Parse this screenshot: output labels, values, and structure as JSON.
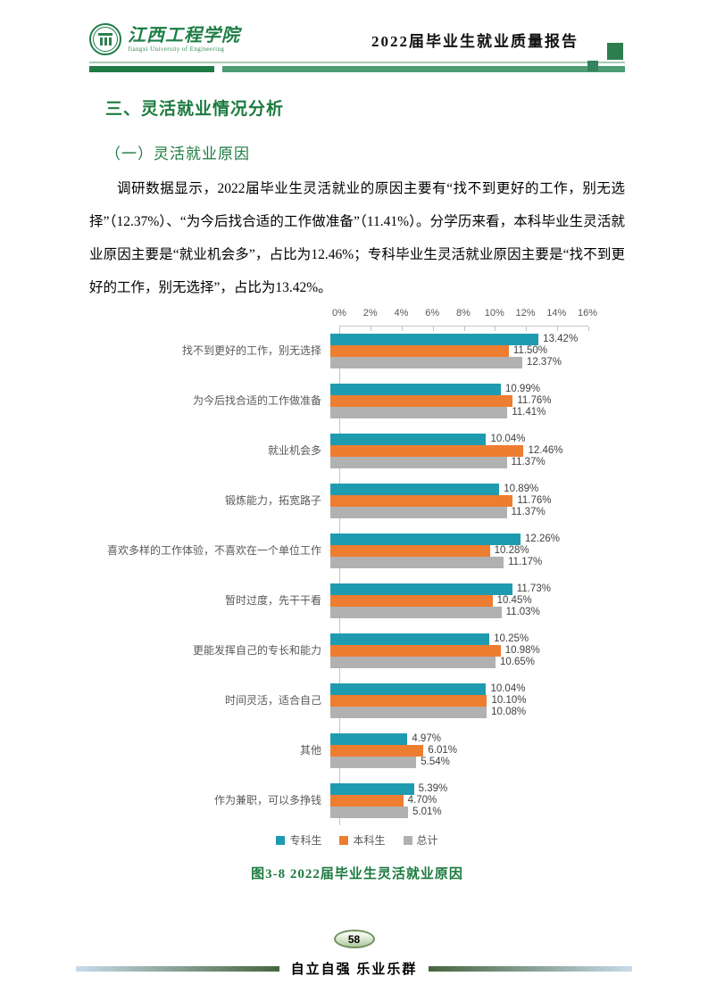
{
  "header": {
    "logo_name_cn": "江西工程学院",
    "logo_name_en": "Jiangxi University of Engineering",
    "report_title": "2022届毕业生就业质量报告"
  },
  "section_title": "三、灵活就业情况分析",
  "subsection_title": "（一）灵活就业原因",
  "paragraph": "调研数据显示，2022届毕业生灵活就业的原因主要有“找不到更好的工作，别无选择”（12.37%）、“为今后找合适的工作做准备”（11.41%）。分学历来看，本科毕业生灵活就业原因主要是“就业机会多”，占比为12.46%；专科毕业生灵活就业原因主要是“找不到更好的工作，别无选择”，占比为13.42%。",
  "chart_data": {
    "type": "bar",
    "orientation": "horizontal",
    "title": "图3-8 2022届毕业生灵活就业原因",
    "categories": [
      "找不到更好的工作，别无选择",
      "为今后找合适的工作做准备",
      "就业机会多",
      "锻炼能力，拓宽路子",
      "喜欢多样的工作体验，不喜欢在一个单位工作",
      "暂时过度，先干干看",
      "更能发挥自己的专长和能力",
      "时间灵活，适合自己",
      "其他",
      "作为兼职，可以多挣钱"
    ],
    "series": [
      {
        "name": "专科生",
        "color": "#1F9BB0",
        "values": [
          13.42,
          10.99,
          10.04,
          10.89,
          12.26,
          11.73,
          10.25,
          10.04,
          4.97,
          5.39
        ]
      },
      {
        "name": "本科生",
        "color": "#ED7D31",
        "values": [
          11.5,
          11.76,
          12.46,
          11.76,
          10.28,
          10.45,
          10.98,
          10.1,
          6.01,
          4.7
        ]
      },
      {
        "name": "总计",
        "color": "#B1B1B1",
        "values": [
          12.37,
          11.41,
          11.37,
          11.37,
          11.17,
          11.03,
          10.65,
          10.08,
          5.54,
          5.01
        ]
      }
    ],
    "x_axis": {
      "min": 0,
      "max": 16,
      "ticks": [
        "0%",
        "2%",
        "4%",
        "6%",
        "8%",
        "10%",
        "12%",
        "14%",
        "16%"
      ]
    },
    "value_suffix": "%",
    "legend_position": "bottom",
    "grid": false
  },
  "figure_caption": "图3-8 2022届毕业生灵活就业原因",
  "footer": {
    "page_number": "58",
    "motto": "自立自强 乐业乐群"
  }
}
